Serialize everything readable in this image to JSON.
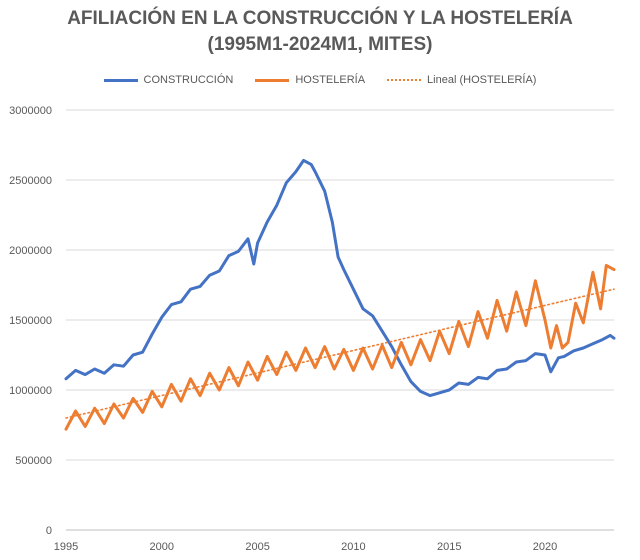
{
  "title_lines": [
    "AFILIACIÓN EN LA CONSTRUCCIÓN Y LA HOSTELERÍA",
    "(1995M1-2024M1, MITES)"
  ],
  "chart_data": {
    "type": "line",
    "xlim": [
      1995,
      2023.6
    ],
    "ylim": [
      0,
      3000000
    ],
    "y_ticks": [
      0,
      500000,
      1000000,
      1500000,
      2000000,
      2500000,
      3000000
    ],
    "y_tick_labels": [
      "0",
      "500000",
      "1000000",
      "1500000",
      "2000000",
      "2500000",
      "3000000"
    ],
    "x_ticks": [
      1995,
      2000,
      2005,
      2010,
      2015,
      2020
    ],
    "x_tick_labels": [
      "1995",
      "2000",
      "2005",
      "2010",
      "2015",
      "2020"
    ],
    "grid": "horizontal",
    "legend_position": "top",
    "series": [
      {
        "name": "CONSTRUCCIÓN",
        "color": "#4472C4",
        "style": "solid",
        "points": [
          [
            1995.0,
            1080000
          ],
          [
            1995.5,
            1140000
          ],
          [
            1996.0,
            1110000
          ],
          [
            1996.5,
            1150000
          ],
          [
            1997.0,
            1120000
          ],
          [
            1997.5,
            1180000
          ],
          [
            1998.0,
            1170000
          ],
          [
            1998.5,
            1250000
          ],
          [
            1999.0,
            1270000
          ],
          [
            1999.5,
            1400000
          ],
          [
            2000.0,
            1520000
          ],
          [
            2000.5,
            1610000
          ],
          [
            2001.0,
            1630000
          ],
          [
            2001.5,
            1720000
          ],
          [
            2002.0,
            1740000
          ],
          [
            2002.5,
            1820000
          ],
          [
            2003.0,
            1850000
          ],
          [
            2003.5,
            1960000
          ],
          [
            2004.0,
            1990000
          ],
          [
            2004.5,
            2080000
          ],
          [
            2004.8,
            1900000
          ],
          [
            2005.0,
            2050000
          ],
          [
            2005.5,
            2200000
          ],
          [
            2006.0,
            2320000
          ],
          [
            2006.5,
            2480000
          ],
          [
            2007.0,
            2560000
          ],
          [
            2007.4,
            2640000
          ],
          [
            2007.8,
            2610000
          ],
          [
            2008.0,
            2560000
          ],
          [
            2008.5,
            2420000
          ],
          [
            2008.9,
            2200000
          ],
          [
            2009.2,
            1950000
          ],
          [
            2009.5,
            1860000
          ],
          [
            2010.0,
            1720000
          ],
          [
            2010.5,
            1580000
          ],
          [
            2011.0,
            1530000
          ],
          [
            2011.5,
            1420000
          ],
          [
            2012.0,
            1310000
          ],
          [
            2012.5,
            1180000
          ],
          [
            2013.0,
            1060000
          ],
          [
            2013.5,
            990000
          ],
          [
            2014.0,
            960000
          ],
          [
            2014.5,
            980000
          ],
          [
            2015.0,
            1000000
          ],
          [
            2015.5,
            1050000
          ],
          [
            2016.0,
            1040000
          ],
          [
            2016.5,
            1090000
          ],
          [
            2017.0,
            1080000
          ],
          [
            2017.5,
            1140000
          ],
          [
            2018.0,
            1150000
          ],
          [
            2018.5,
            1200000
          ],
          [
            2019.0,
            1210000
          ],
          [
            2019.5,
            1260000
          ],
          [
            2020.0,
            1250000
          ],
          [
            2020.3,
            1130000
          ],
          [
            2020.7,
            1230000
          ],
          [
            2021.0,
            1240000
          ],
          [
            2021.5,
            1280000
          ],
          [
            2022.0,
            1300000
          ],
          [
            2022.5,
            1330000
          ],
          [
            2023.0,
            1360000
          ],
          [
            2023.4,
            1390000
          ],
          [
            2023.6,
            1370000
          ]
        ]
      },
      {
        "name": "HOSTELERÍA",
        "color": "#ED7D31",
        "style": "solid",
        "points": [
          [
            1995.0,
            720000
          ],
          [
            1995.5,
            850000
          ],
          [
            1996.0,
            740000
          ],
          [
            1996.5,
            870000
          ],
          [
            1997.0,
            760000
          ],
          [
            1997.5,
            900000
          ],
          [
            1998.0,
            800000
          ],
          [
            1998.5,
            940000
          ],
          [
            1999.0,
            840000
          ],
          [
            1999.5,
            990000
          ],
          [
            2000.0,
            880000
          ],
          [
            2000.5,
            1040000
          ],
          [
            2001.0,
            920000
          ],
          [
            2001.5,
            1080000
          ],
          [
            2002.0,
            960000
          ],
          [
            2002.5,
            1120000
          ],
          [
            2003.0,
            1000000
          ],
          [
            2003.5,
            1160000
          ],
          [
            2004.0,
            1030000
          ],
          [
            2004.5,
            1200000
          ],
          [
            2005.0,
            1070000
          ],
          [
            2005.5,
            1240000
          ],
          [
            2006.0,
            1110000
          ],
          [
            2006.5,
            1270000
          ],
          [
            2007.0,
            1140000
          ],
          [
            2007.5,
            1300000
          ],
          [
            2008.0,
            1160000
          ],
          [
            2008.5,
            1310000
          ],
          [
            2009.0,
            1150000
          ],
          [
            2009.5,
            1290000
          ],
          [
            2010.0,
            1140000
          ],
          [
            2010.5,
            1300000
          ],
          [
            2011.0,
            1150000
          ],
          [
            2011.5,
            1320000
          ],
          [
            2012.0,
            1160000
          ],
          [
            2012.5,
            1340000
          ],
          [
            2013.0,
            1180000
          ],
          [
            2013.5,
            1360000
          ],
          [
            2014.0,
            1210000
          ],
          [
            2014.5,
            1420000
          ],
          [
            2015.0,
            1260000
          ],
          [
            2015.5,
            1490000
          ],
          [
            2016.0,
            1310000
          ],
          [
            2016.5,
            1560000
          ],
          [
            2017.0,
            1370000
          ],
          [
            2017.5,
            1640000
          ],
          [
            2018.0,
            1420000
          ],
          [
            2018.5,
            1700000
          ],
          [
            2019.0,
            1460000
          ],
          [
            2019.5,
            1780000
          ],
          [
            2020.0,
            1500000
          ],
          [
            2020.3,
            1300000
          ],
          [
            2020.6,
            1460000
          ],
          [
            2020.9,
            1300000
          ],
          [
            2021.2,
            1340000
          ],
          [
            2021.6,
            1620000
          ],
          [
            2022.0,
            1480000
          ],
          [
            2022.5,
            1840000
          ],
          [
            2022.9,
            1580000
          ],
          [
            2023.2,
            1890000
          ],
          [
            2023.6,
            1860000
          ]
        ]
      },
      {
        "name": "Lineal (HOSTELERÍA)",
        "color": "#ED7D31",
        "style": "dotted",
        "points": [
          [
            1995.0,
            800000
          ],
          [
            2023.6,
            1720000
          ]
        ]
      }
    ]
  }
}
